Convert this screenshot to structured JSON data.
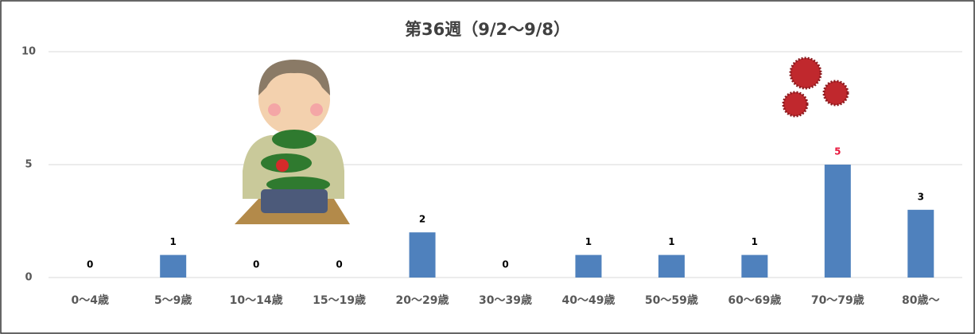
{
  "chart_data": {
    "type": "bar",
    "title": "第36週（9/2〜9/8）",
    "categories": [
      "0〜4歳",
      "5〜9歳",
      "10〜14歳",
      "15〜19歳",
      "20〜29歳",
      "30〜39歳",
      "40〜49歳",
      "50〜59歳",
      "60〜69歳",
      "70〜79歳",
      "80歳〜"
    ],
    "values": [
      0,
      1,
      0,
      0,
      2,
      0,
      1,
      1,
      1,
      5,
      3
    ],
    "color": "#4f81bd",
    "value_label_colors": [
      "#000000",
      "#000000",
      "#000000",
      "#000000",
      "#000000",
      "#000000",
      "#000000",
      "#000000",
      "#000000",
      "#e8173c",
      "#000000"
    ],
    "ylim": [
      0,
      10
    ],
    "yticks": [
      0,
      5,
      10
    ],
    "grid": true
  }
}
